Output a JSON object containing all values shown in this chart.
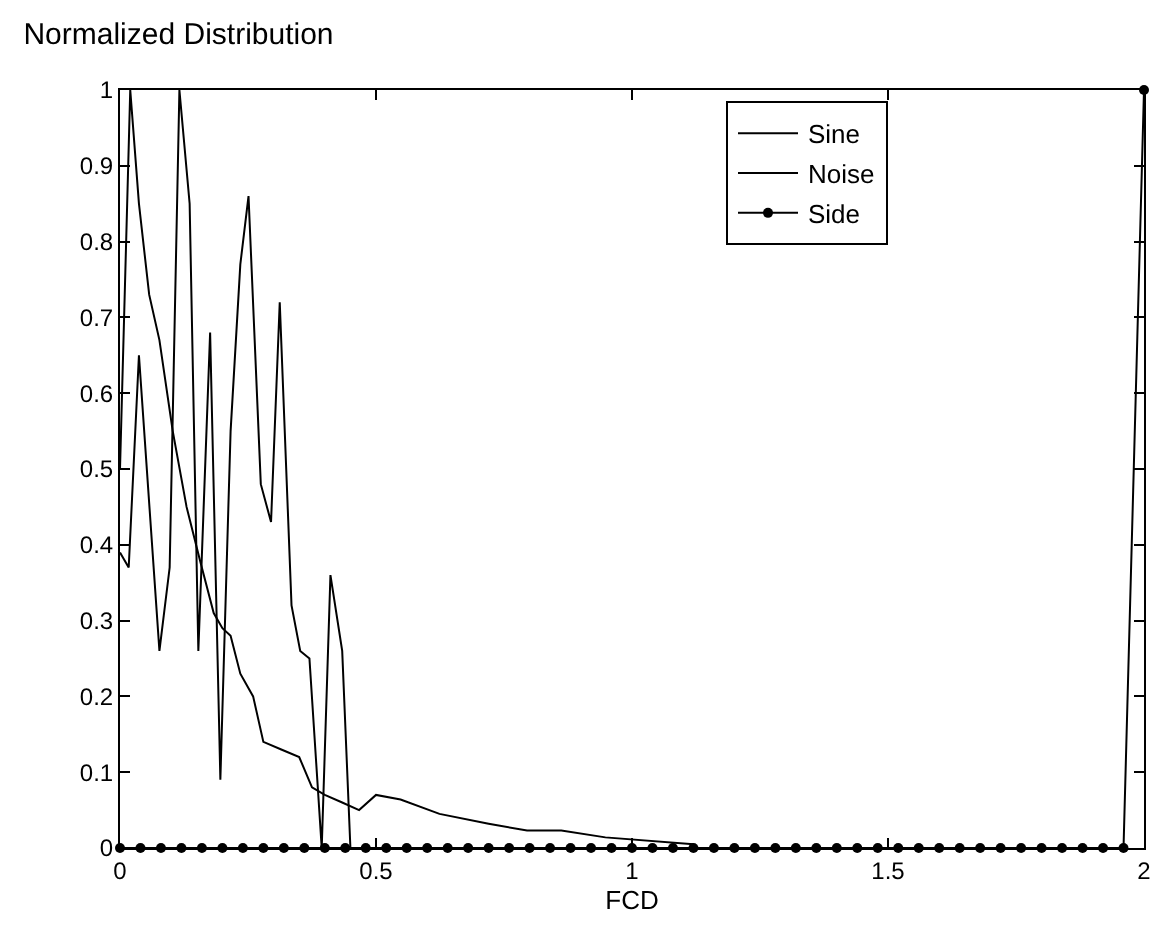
{
  "chart_data": {
    "type": "line",
    "title": "Normalized Distribution",
    "xlabel": "FCD",
    "xlim": [
      0,
      2
    ],
    "xticks": [
      0,
      0.5,
      1,
      1.5,
      2
    ],
    "ylim": [
      0,
      1
    ],
    "yticks": [
      0,
      0.1,
      0.2,
      0.3,
      0.4,
      0.5,
      0.6,
      0.7,
      0.8,
      0.9,
      1
    ],
    "grid": false,
    "legend": "top right",
    "line_style": "solid",
    "series": [
      {
        "name": "Sine",
        "color": "#000000",
        "marker": "none",
        "x": [
          0,
          0.02,
          0.037,
          0.057,
          0.077,
          0.103,
          0.13,
          0.156,
          0.183,
          0.2,
          0.216,
          0.235,
          0.26,
          0.28,
          0.315,
          0.35,
          0.375,
          0.4,
          0.434,
          0.467,
          0.5,
          0.548,
          0.624,
          0.72,
          0.795,
          0.862,
          0.948,
          1.12
        ],
        "values": [
          0.5,
          1,
          0.85,
          0.73,
          0.67,
          0.55,
          0.45,
          0.38,
          0.31,
          0.29,
          0.28,
          0.23,
          0.2,
          0.14,
          0.13,
          0.12,
          0.08,
          0.07,
          0.06,
          0.05,
          0.07,
          0.064,
          0.045,
          0.032,
          0.023,
          0.023,
          0.014,
          0.005
        ]
      },
      {
        "name": "Noise",
        "color": "#000000",
        "marker": "none",
        "x": [
          0,
          0.017,
          0.037,
          0.077,
          0.097,
          0.116,
          0.136,
          0.153,
          0.176,
          0.196,
          0.216,
          0.235,
          0.251,
          0.275,
          0.295,
          0.312,
          0.335,
          0.352,
          0.37,
          0.394,
          0.411,
          0.434,
          0.45
        ],
        "values": [
          0.39,
          0.37,
          0.65,
          0.26,
          0.37,
          1,
          0.85,
          0.26,
          0.68,
          0.09,
          0.55,
          0.77,
          0.86,
          0.48,
          0.43,
          0.72,
          0.32,
          0.26,
          0.25,
          0,
          0.36,
          0.26,
          0
        ]
      },
      {
        "name": "Side",
        "color": "#000000",
        "marker": "circle",
        "x": [
          0,
          0.04,
          0.08,
          0.12,
          0.16,
          0.2,
          0.24,
          0.28,
          0.32,
          0.36,
          0.4,
          0.44,
          0.48,
          0.52,
          0.56,
          0.6,
          0.64,
          0.68,
          0.72,
          0.76,
          0.8,
          0.84,
          0.88,
          0.92,
          0.96,
          1,
          1.04,
          1.08,
          1.12,
          1.16,
          1.2,
          1.24,
          1.28,
          1.32,
          1.36,
          1.4,
          1.44,
          1.48,
          1.52,
          1.56,
          1.6,
          1.64,
          1.68,
          1.72,
          1.76,
          1.8,
          1.84,
          1.88,
          1.92,
          1.96,
          2
        ],
        "values": [
          0,
          0,
          0,
          0,
          0,
          0,
          0,
          0,
          0,
          0,
          0,
          0,
          0,
          0,
          0,
          0,
          0,
          0,
          0,
          0,
          0,
          0,
          0,
          0,
          0,
          0,
          0,
          0,
          0,
          0,
          0,
          0,
          0,
          0,
          0,
          0,
          0,
          0,
          0,
          0,
          0,
          0,
          0,
          0,
          0,
          0,
          0,
          0,
          0,
          0,
          1
        ]
      }
    ]
  }
}
